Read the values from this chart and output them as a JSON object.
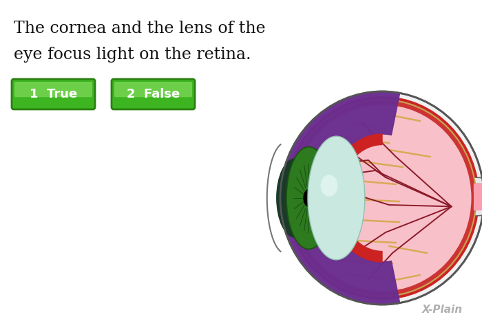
{
  "bg_color": "#ffffff",
  "question_text_line1": "The cornea and the lens of the",
  "question_text_line2": "eye focus light on the retina.",
  "question_fontsize": 17,
  "button1_label": "1  True",
  "button2_label": "2  False",
  "button_text_color": "#ffffff",
  "button_fontsize": 13,
  "watermark": "X-Plain",
  "watermark_color": "#b0b0b0"
}
